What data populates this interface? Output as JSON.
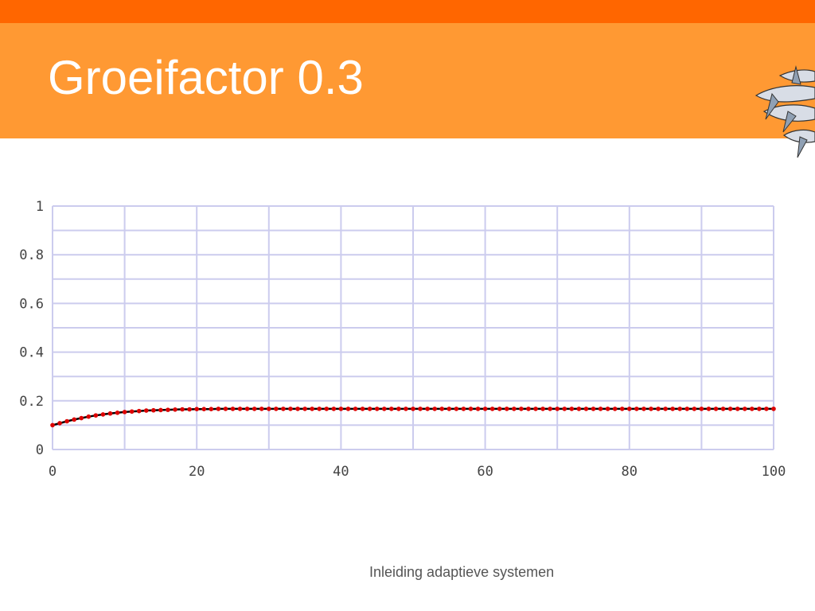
{
  "slide": {
    "title": "Groeifactor 0.3",
    "footer": "Inleiding adaptieve systemen",
    "logo": "flying-fish-logo"
  },
  "colors": {
    "top_strip": "#ff6600",
    "title_band": "#ff9933",
    "grid": "#ccccee",
    "line": "#000000",
    "marker": "#dd0000"
  },
  "chart_data": {
    "type": "line",
    "title": "",
    "xlabel": "",
    "ylabel": "",
    "xlim": [
      0,
      100
    ],
    "ylim": [
      0,
      1
    ],
    "x_ticks": [
      "0",
      "20",
      "40",
      "60",
      "80",
      "100"
    ],
    "y_ticks": [
      "0",
      "0.2",
      "0.4",
      "0.6",
      "0.8",
      "1"
    ],
    "grid": true,
    "series": [
      {
        "x": [
          0,
          1,
          2,
          3,
          4,
          5,
          6,
          7,
          8,
          9,
          10,
          11,
          12,
          13,
          14,
          15,
          16,
          17,
          18,
          19,
          20,
          21,
          22,
          23,
          24,
          25,
          26,
          27,
          28,
          29,
          30,
          31,
          32,
          33,
          34,
          35,
          36,
          37,
          38,
          39,
          40,
          41,
          42,
          43,
          44,
          45,
          46,
          47,
          48,
          49,
          50,
          51,
          52,
          53,
          54,
          55,
          56,
          57,
          58,
          59,
          60,
          61,
          62,
          63,
          64,
          65,
          66,
          67,
          68,
          69,
          70,
          71,
          72,
          73,
          74,
          75,
          76,
          77,
          78,
          79,
          80,
          81,
          82,
          83,
          84,
          85,
          86,
          87,
          88,
          89,
          90,
          91,
          92,
          93,
          94,
          95,
          96,
          97,
          98,
          99,
          100
        ],
        "values": [
          0.1,
          0.108,
          0.116,
          0.123,
          0.129,
          0.135,
          0.14,
          0.144,
          0.148,
          0.151,
          0.154,
          0.156,
          0.158,
          0.16,
          0.161,
          0.162,
          0.163,
          0.164,
          0.165,
          0.165,
          0.166,
          0.166,
          0.166,
          0.167,
          0.167,
          0.167,
          0.167,
          0.167,
          0.167,
          0.167,
          0.167,
          0.167,
          0.167,
          0.167,
          0.167,
          0.167,
          0.167,
          0.167,
          0.167,
          0.167,
          0.167,
          0.167,
          0.167,
          0.167,
          0.167,
          0.167,
          0.167,
          0.167,
          0.167,
          0.167,
          0.167,
          0.167,
          0.167,
          0.167,
          0.167,
          0.167,
          0.167,
          0.167,
          0.167,
          0.167,
          0.167,
          0.167,
          0.167,
          0.167,
          0.167,
          0.167,
          0.167,
          0.167,
          0.167,
          0.167,
          0.167,
          0.167,
          0.167,
          0.167,
          0.167,
          0.167,
          0.167,
          0.167,
          0.167,
          0.167,
          0.167,
          0.167,
          0.167,
          0.167,
          0.167,
          0.167,
          0.167,
          0.167,
          0.167,
          0.167,
          0.167,
          0.167,
          0.167,
          0.167,
          0.167,
          0.167,
          0.167,
          0.167,
          0.167,
          0.167,
          0.167
        ]
      }
    ]
  }
}
